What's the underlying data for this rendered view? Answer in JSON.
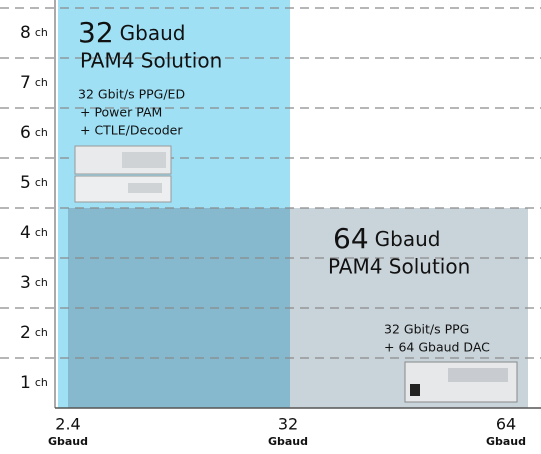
{
  "rows": [
    {
      "number": "8",
      "unit": "ch"
    },
    {
      "number": "7",
      "unit": "ch"
    },
    {
      "number": "6",
      "unit": "ch"
    },
    {
      "number": "5",
      "unit": "ch"
    },
    {
      "number": "4",
      "unit": "ch"
    },
    {
      "number": "3",
      "unit": "ch"
    },
    {
      "number": "2",
      "unit": "ch"
    },
    {
      "number": "1",
      "unit": "ch"
    }
  ],
  "x_labels": [
    {
      "value": "2.4",
      "unit": "Gbaud"
    },
    {
      "value": "32",
      "unit": "Gbaud"
    },
    {
      "value": "64",
      "unit": "Gbaud"
    }
  ],
  "solutions": [
    {
      "rate": "32",
      "unit": "Gbaud",
      "name": "PAM4 Solution",
      "lines": [
        "32 Gbit/s PPG/ED",
        "+ Power PAM",
        "+ CTLE/Decoder"
      ]
    },
    {
      "rate": "64",
      "unit": "Gbaud",
      "name": "PAM4 Solution",
      "lines": [
        "32 Gbit/s PPG",
        "+ 64 Gbaud DAC"
      ]
    }
  ]
}
